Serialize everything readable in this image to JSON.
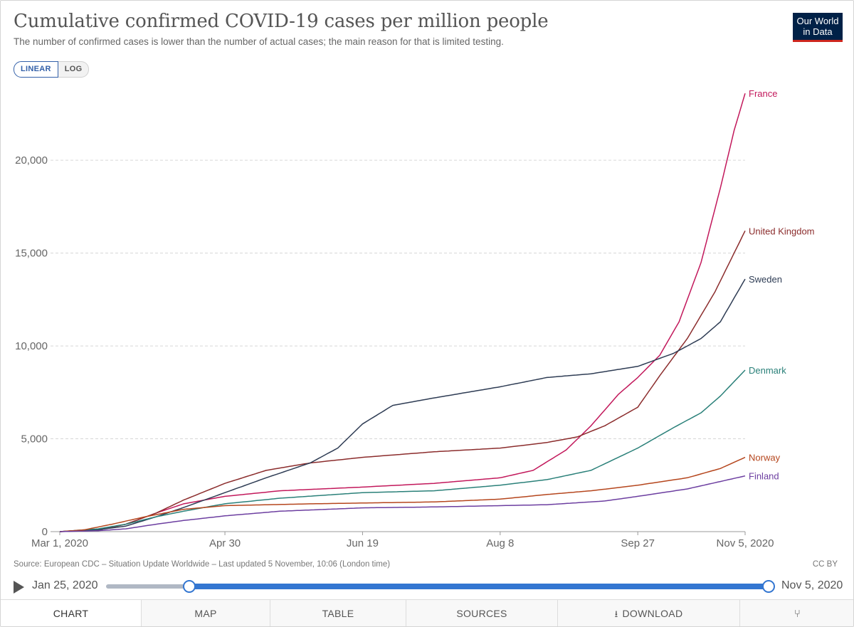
{
  "header": {
    "title": "Cumulative confirmed COVID-19 cases per million people",
    "subtitle": "The number of confirmed cases is lower than the number of actual cases; the main reason for that is limited testing.",
    "logo_line1": "Our World",
    "logo_line2": "in Data"
  },
  "scale_toggle": {
    "linear": "LINEAR",
    "log": "LOG",
    "selected": "LINEAR"
  },
  "chart_data": {
    "type": "line",
    "title": "Cumulative confirmed COVID-19 cases per million people",
    "x_ticks": [
      "Mar 1, 2020",
      "Apr 30",
      "Jun 19",
      "Aug 8",
      "Sep 27",
      "Nov 5, 2020"
    ],
    "x_tick_days": [
      0,
      60,
      110,
      160,
      210,
      249
    ],
    "x_range": [
      "2020-03-01",
      "2020-11-05"
    ],
    "y_ticks": [
      "0",
      "5,000",
      "10,000",
      "15,000",
      "20,000"
    ],
    "y_tick_values": [
      0,
      5000,
      10000,
      15000,
      20000
    ],
    "ylim": [
      0,
      23800
    ],
    "grid": "horizontal-dashed",
    "series": [
      {
        "name": "France",
        "color": "#c2185b",
        "label_value": 23600,
        "points": [
          [
            "2020-03-01",
            0
          ],
          [
            "2020-03-15",
            100
          ],
          [
            "2020-03-25",
            400
          ],
          [
            "2020-04-05",
            1000
          ],
          [
            "2020-04-15",
            1500
          ],
          [
            "2020-04-30",
            1900
          ],
          [
            "2020-05-20",
            2200
          ],
          [
            "2020-06-19",
            2400
          ],
          [
            "2020-07-15",
            2600
          ],
          [
            "2020-08-08",
            2900
          ],
          [
            "2020-08-20",
            3300
          ],
          [
            "2020-09-01",
            4400
          ],
          [
            "2020-09-10",
            5700
          ],
          [
            "2020-09-20",
            7400
          ],
          [
            "2020-09-27",
            8300
          ],
          [
            "2020-10-05",
            9500
          ],
          [
            "2020-10-12",
            11300
          ],
          [
            "2020-10-20",
            14500
          ],
          [
            "2020-10-27",
            18500
          ],
          [
            "2020-11-01",
            21600
          ],
          [
            "2020-11-05",
            23600
          ]
        ]
      },
      {
        "name": "United Kingdom",
        "color": "#8b2c2c",
        "label_value": 16200,
        "points": [
          [
            "2020-03-01",
            0
          ],
          [
            "2020-03-15",
            80
          ],
          [
            "2020-03-25",
            400
          ],
          [
            "2020-04-05",
            1000
          ],
          [
            "2020-04-15",
            1700
          ],
          [
            "2020-04-30",
            2600
          ],
          [
            "2020-05-15",
            3300
          ],
          [
            "2020-05-31",
            3700
          ],
          [
            "2020-06-19",
            4000
          ],
          [
            "2020-07-15",
            4300
          ],
          [
            "2020-08-08",
            4500
          ],
          [
            "2020-08-25",
            4800
          ],
          [
            "2020-09-05",
            5100
          ],
          [
            "2020-09-15",
            5700
          ],
          [
            "2020-09-27",
            6700
          ],
          [
            "2020-10-05",
            8400
          ],
          [
            "2020-10-15",
            10400
          ],
          [
            "2020-10-25",
            12900
          ],
          [
            "2020-11-05",
            16200
          ]
        ]
      },
      {
        "name": "Sweden",
        "color": "#2e3c54",
        "label_value": 13600,
        "points": [
          [
            "2020-03-01",
            0
          ],
          [
            "2020-03-15",
            100
          ],
          [
            "2020-03-25",
            300
          ],
          [
            "2020-04-05",
            800
          ],
          [
            "2020-04-15",
            1300
          ],
          [
            "2020-04-30",
            2100
          ],
          [
            "2020-05-15",
            2900
          ],
          [
            "2020-05-31",
            3700
          ],
          [
            "2020-06-10",
            4500
          ],
          [
            "2020-06-19",
            5800
          ],
          [
            "2020-06-30",
            6800
          ],
          [
            "2020-07-15",
            7200
          ],
          [
            "2020-08-08",
            7800
          ],
          [
            "2020-08-25",
            8300
          ],
          [
            "2020-09-10",
            8500
          ],
          [
            "2020-09-27",
            8900
          ],
          [
            "2020-10-10",
            9600
          ],
          [
            "2020-10-20",
            10400
          ],
          [
            "2020-10-27",
            11300
          ],
          [
            "2020-11-05",
            13600
          ]
        ]
      },
      {
        "name": "Denmark",
        "color": "#2a8079",
        "label_value": 8700,
        "points": [
          [
            "2020-03-01",
            0
          ],
          [
            "2020-03-15",
            150
          ],
          [
            "2020-03-25",
            400
          ],
          [
            "2020-04-05",
            800
          ],
          [
            "2020-04-15",
            1100
          ],
          [
            "2020-04-30",
            1500
          ],
          [
            "2020-05-20",
            1800
          ],
          [
            "2020-06-19",
            2100
          ],
          [
            "2020-07-15",
            2200
          ],
          [
            "2020-08-08",
            2500
          ],
          [
            "2020-08-25",
            2800
          ],
          [
            "2020-09-10",
            3300
          ],
          [
            "2020-09-27",
            4500
          ],
          [
            "2020-10-10",
            5600
          ],
          [
            "2020-10-20",
            6400
          ],
          [
            "2020-10-27",
            7300
          ],
          [
            "2020-11-05",
            8700
          ]
        ]
      },
      {
        "name": "Norway",
        "color": "#b5461d",
        "label_value": 4000,
        "points": [
          [
            "2020-03-01",
            0
          ],
          [
            "2020-03-10",
            100
          ],
          [
            "2020-03-20",
            400
          ],
          [
            "2020-04-01",
            800
          ],
          [
            "2020-04-15",
            1200
          ],
          [
            "2020-04-30",
            1400
          ],
          [
            "2020-06-01",
            1500
          ],
          [
            "2020-07-15",
            1600
          ],
          [
            "2020-08-08",
            1750
          ],
          [
            "2020-08-25",
            2000
          ],
          [
            "2020-09-10",
            2200
          ],
          [
            "2020-09-27",
            2500
          ],
          [
            "2020-10-15",
            2900
          ],
          [
            "2020-10-27",
            3400
          ],
          [
            "2020-11-05",
            4000
          ]
        ]
      },
      {
        "name": "Finland",
        "color": "#6c3ea0",
        "label_value": 3000,
        "points": [
          [
            "2020-03-01",
            0
          ],
          [
            "2020-03-15",
            50
          ],
          [
            "2020-03-25",
            150
          ],
          [
            "2020-04-05",
            400
          ],
          [
            "2020-04-15",
            600
          ],
          [
            "2020-04-30",
            850
          ],
          [
            "2020-05-20",
            1100
          ],
          [
            "2020-06-19",
            1280
          ],
          [
            "2020-07-15",
            1330
          ],
          [
            "2020-08-08",
            1400
          ],
          [
            "2020-08-25",
            1450
          ],
          [
            "2020-09-15",
            1650
          ],
          [
            "2020-09-27",
            1900
          ],
          [
            "2020-10-15",
            2300
          ],
          [
            "2020-10-27",
            2700
          ],
          [
            "2020-11-05",
            3000
          ]
        ]
      }
    ]
  },
  "footer": {
    "source": "Source: European CDC – Situation Update Worldwide – Last updated 5 November, 10:06 (London time)",
    "license": "CC BY"
  },
  "timeline": {
    "start": "Jan 25, 2020",
    "end": "Nov 5, 2020"
  },
  "tabs": {
    "chart": "CHART",
    "map": "MAP",
    "table": "TABLE",
    "sources": "SOURCES",
    "download": "DOWNLOAD"
  }
}
